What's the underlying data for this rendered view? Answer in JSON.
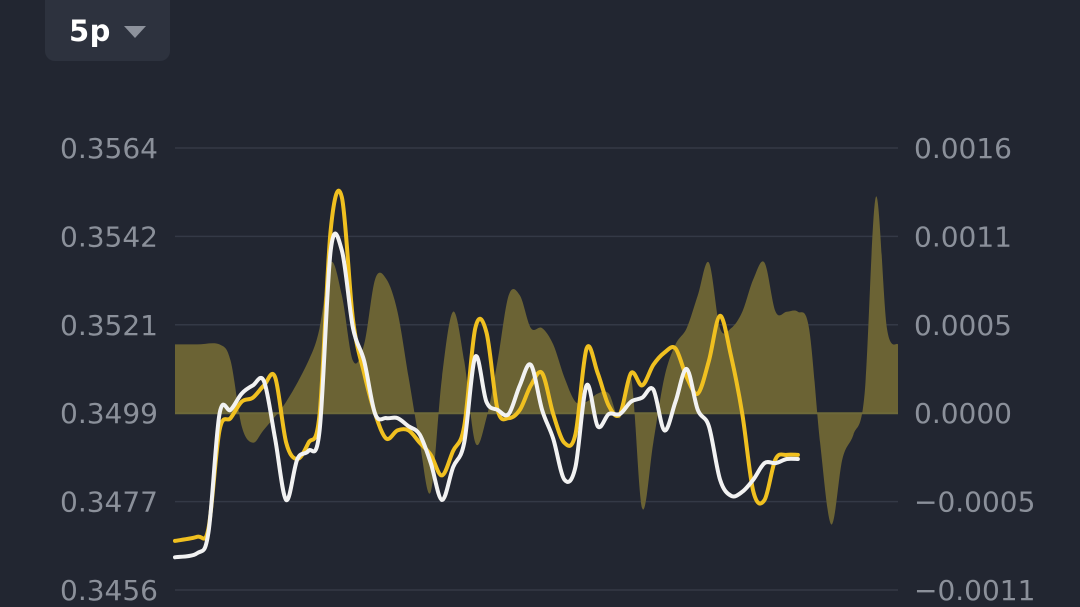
{
  "toolbar": {
    "interval_label": "5p",
    "interval_icon": "chevron-down-icon"
  },
  "colors": {
    "background": "#222631",
    "grid": "#343946",
    "zero_line": "#6e6a3a",
    "yellow_line": "#f0c020",
    "white_line": "#f2f2f2",
    "histogram_fill": "#6b6334",
    "axis_text": "#8b909a"
  },
  "chart_data": {
    "type": "line",
    "left_axis": {
      "ticks": [
        "0.3564",
        "0.3542",
        "0.3521",
        "0.3499",
        "0.3477",
        "0.3456"
      ],
      "range": [
        0.3456,
        0.3564
      ]
    },
    "right_axis": {
      "ticks": [
        "0.0016",
        "0.0011",
        "0.0005",
        "0.0000",
        "−0.0005",
        "−0.0011"
      ],
      "range": [
        -0.0011,
        0.0016
      ]
    },
    "grid": true,
    "histogram": [
      [
        0,
        0.0004
      ],
      [
        2,
        0.0004
      ],
      [
        4,
        0.0004
      ],
      [
        5,
        0.0003
      ],
      [
        6,
        -0.0001
      ],
      [
        7,
        -0.0002
      ],
      [
        8,
        -0.00012
      ],
      [
        10,
        5e-05
      ],
      [
        12,
        0.0003
      ],
      [
        13,
        0.0005
      ],
      [
        14,
        0.0009
      ],
      [
        15,
        0.0007
      ],
      [
        16,
        0.0003
      ],
      [
        17,
        0.0004
      ],
      [
        18,
        0.0008
      ],
      [
        19,
        0.0008
      ],
      [
        20,
        0.0006
      ],
      [
        21,
        0.0002
      ],
      [
        22,
        -0.0002
      ],
      [
        23,
        -0.0005
      ],
      [
        24,
        0.0002
      ],
      [
        25,
        0.0006
      ],
      [
        26,
        0.0003
      ],
      [
        27,
        -0.0002
      ],
      [
        28,
        -5e-05
      ],
      [
        29,
        0.0003
      ],
      [
        30,
        0.0007
      ],
      [
        31,
        0.0007
      ],
      [
        32,
        0.0005
      ],
      [
        33,
        0.0005
      ],
      [
        34,
        0.0004
      ],
      [
        35,
        0.0002
      ],
      [
        36,
        5e-05
      ],
      [
        37,
        5e-05
      ],
      [
        38,
        0.0001
      ],
      [
        39,
        0.0001
      ],
      [
        40,
        -5e-05
      ],
      [
        41,
        0.0002
      ],
      [
        42,
        -0.0006
      ],
      [
        43,
        -0.0002
      ],
      [
        44,
        0.0002
      ],
      [
        45,
        0.0004
      ],
      [
        46,
        0.0005
      ],
      [
        47,
        0.0007
      ],
      [
        48,
        0.0009
      ],
      [
        49,
        0.0005
      ],
      [
        50,
        0.0005
      ],
      [
        51,
        0.0006
      ],
      [
        52,
        0.0008
      ],
      [
        53,
        0.0009
      ],
      [
        54,
        0.0006
      ],
      [
        55,
        0.0006
      ],
      [
        56,
        0.0006
      ],
      [
        57,
        0.0005
      ],
      [
        58,
        -0.0002
      ],
      [
        59,
        -0.0007
      ],
      [
        60,
        -0.0003
      ],
      [
        61,
        -0.00015
      ],
      [
        62,
        0.0001
      ],
      [
        63,
        0.0013
      ],
      [
        64,
        0.0005
      ],
      [
        65,
        0.0004
      ]
    ],
    "series": [
      {
        "color": "yellow",
        "points": [
          [
            0,
            0.3468
          ],
          [
            2,
            0.3469
          ],
          [
            3,
            0.3471
          ],
          [
            4,
            0.3495
          ],
          [
            5,
            0.3498
          ],
          [
            6,
            0.3502
          ],
          [
            7,
            0.3503
          ],
          [
            8,
            0.3506
          ],
          [
            9,
            0.3508
          ],
          [
            10,
            0.3492
          ],
          [
            11,
            0.3488
          ],
          [
            12,
            0.3492
          ],
          [
            13,
            0.3499
          ],
          [
            14,
            0.3544
          ],
          [
            15,
            0.3552
          ],
          [
            16,
            0.3522
          ],
          [
            17,
            0.3509
          ],
          [
            18,
            0.3499
          ],
          [
            19,
            0.3493
          ],
          [
            20,
            0.3495
          ],
          [
            21,
            0.3495
          ],
          [
            22,
            0.3492
          ],
          [
            23,
            0.3489
          ],
          [
            24,
            0.3484
          ],
          [
            25,
            0.349
          ],
          [
            26,
            0.3496
          ],
          [
            27,
            0.352
          ],
          [
            28,
            0.3519
          ],
          [
            29,
            0.35
          ],
          [
            30,
            0.3498
          ],
          [
            31,
            0.35
          ],
          [
            32,
            0.3506
          ],
          [
            33,
            0.3509
          ],
          [
            34,
            0.3499
          ],
          [
            35,
            0.3492
          ],
          [
            36,
            0.3494
          ],
          [
            37,
            0.3515
          ],
          [
            38,
            0.3509
          ],
          [
            39,
            0.3501
          ],
          [
            40,
            0.3499
          ],
          [
            41,
            0.3509
          ],
          [
            42,
            0.3506
          ],
          [
            43,
            0.3511
          ],
          [
            44,
            0.3514
          ],
          [
            45,
            0.3515
          ],
          [
            46,
            0.3508
          ],
          [
            47,
            0.3504
          ],
          [
            48,
            0.3512
          ],
          [
            49,
            0.3523
          ],
          [
            50,
            0.3513
          ],
          [
            51,
            0.3499
          ],
          [
            52,
            0.348
          ],
          [
            53,
            0.3478
          ],
          [
            54,
            0.3488
          ],
          [
            55,
            0.3489
          ],
          [
            56,
            0.3489
          ]
        ]
      },
      {
        "color": "white",
        "points": [
          [
            0,
            0.3464
          ],
          [
            2,
            0.3465
          ],
          [
            3,
            0.347
          ],
          [
            4,
            0.3499
          ],
          [
            5,
            0.35
          ],
          [
            6,
            0.3504
          ],
          [
            7,
            0.3506
          ],
          [
            8,
            0.3507
          ],
          [
            9,
            0.3493
          ],
          [
            10,
            0.3478
          ],
          [
            11,
            0.3488
          ],
          [
            12,
            0.349
          ],
          [
            13,
            0.3495
          ],
          [
            14,
            0.3539
          ],
          [
            15,
            0.3539
          ],
          [
            16,
            0.352
          ],
          [
            17,
            0.3512
          ],
          [
            18,
            0.3499
          ],
          [
            19,
            0.3498
          ],
          [
            20,
            0.3498
          ],
          [
            21,
            0.3496
          ],
          [
            22,
            0.3494
          ],
          [
            23,
            0.3487
          ],
          [
            24,
            0.3478
          ],
          [
            25,
            0.3486
          ],
          [
            26,
            0.3492
          ],
          [
            27,
            0.3513
          ],
          [
            28,
            0.3502
          ],
          [
            29,
            0.35
          ],
          [
            30,
            0.3499
          ],
          [
            31,
            0.3506
          ],
          [
            32,
            0.3511
          ],
          [
            33,
            0.35
          ],
          [
            34,
            0.3493
          ],
          [
            35,
            0.3483
          ],
          [
            36,
            0.3486
          ],
          [
            37,
            0.3506
          ],
          [
            38,
            0.3496
          ],
          [
            39,
            0.3499
          ],
          [
            40,
            0.3499
          ],
          [
            41,
            0.3502
          ],
          [
            42,
            0.3503
          ],
          [
            43,
            0.3505
          ],
          [
            44,
            0.3495
          ],
          [
            45,
            0.3502
          ],
          [
            46,
            0.351
          ],
          [
            47,
            0.35
          ],
          [
            48,
            0.3496
          ],
          [
            49,
            0.3483
          ],
          [
            50,
            0.3479
          ],
          [
            51,
            0.348
          ],
          [
            52,
            0.3483
          ],
          [
            53,
            0.3487
          ],
          [
            54,
            0.3487
          ],
          [
            55,
            0.3488
          ],
          [
            56,
            0.3488
          ]
        ]
      }
    ]
  }
}
